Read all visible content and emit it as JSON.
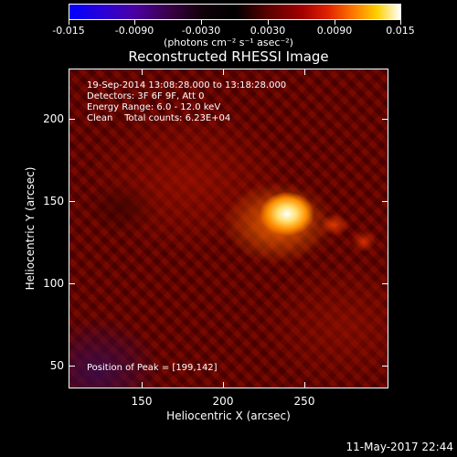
{
  "colorbar": {
    "ticks": [
      "-0.015",
      "-0.0090",
      "-0.0030",
      "0.0030",
      "0.0090",
      "0.015"
    ],
    "units": "(photons cm⁻² s⁻¹ asec⁻²)"
  },
  "title": "Reconstructed RHESSI Image",
  "info": {
    "time_range": "19-Sep-2014 13:08:28.000 to 13:18:28.000",
    "detectors": "Detectors: 3F 6F 9F, Att 0",
    "energy_range": "Energy Range: 6.0 - 12.0 keV",
    "clean_counts": "Clean    Total counts: 6.23E+04",
    "peak": "Position of Peak = [199,142]"
  },
  "axes": {
    "x_ticks": [
      "150",
      "200",
      "250"
    ],
    "y_ticks": [
      "200",
      "150",
      "100",
      "50"
    ],
    "x_title": "Heliocentric X (arcsec)",
    "y_title": "Heliocentric Y (arcsec)"
  },
  "datestamp": "11-May-2017 22:44"
}
